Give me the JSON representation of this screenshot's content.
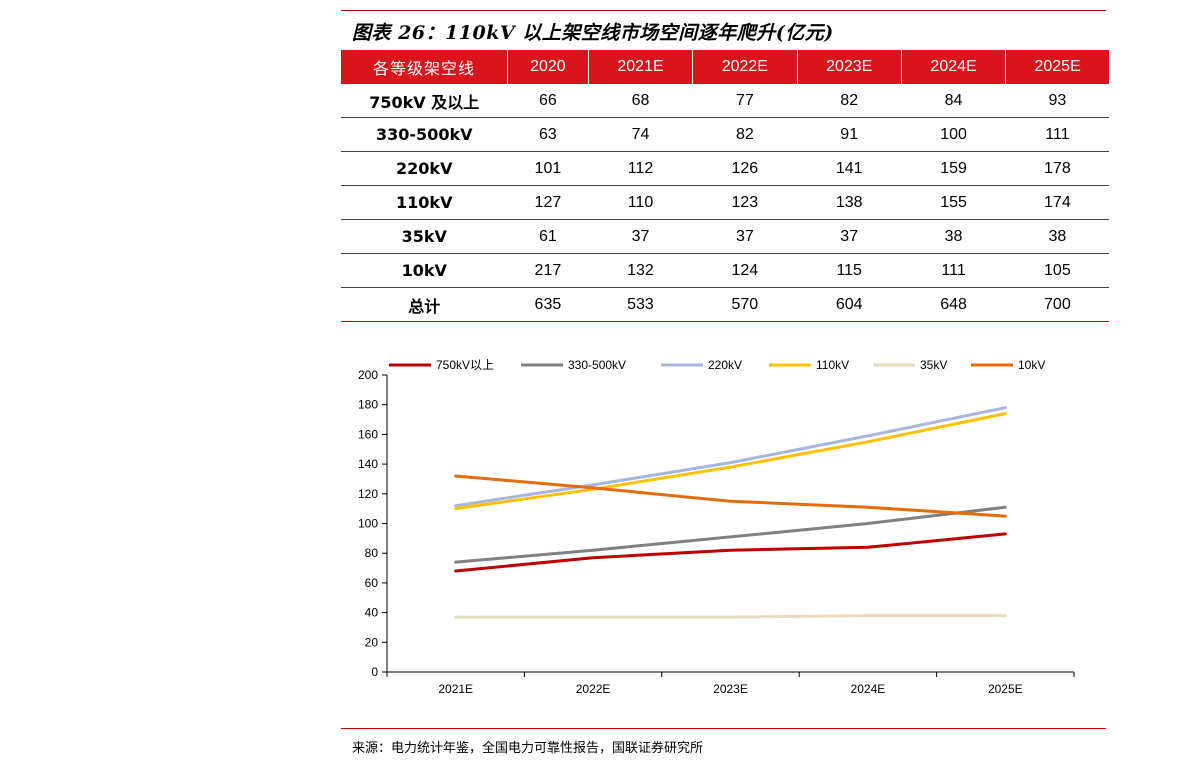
{
  "title": "图表 26：110kV 以上架空线市场空间逐年爬升(亿元)",
  "table": {
    "headers": [
      "各等级架空线",
      "2020",
      "2021E",
      "2022E",
      "2023E",
      "2024E",
      "2025E"
    ],
    "rows": [
      [
        "750kV 及以上",
        "66",
        "68",
        "77",
        "82",
        "84",
        "93"
      ],
      [
        "330-500kV",
        "63",
        "74",
        "82",
        "91",
        "100",
        "111"
      ],
      [
        "220kV",
        "101",
        "112",
        "126",
        "141",
        "159",
        "178"
      ],
      [
        "110kV",
        "127",
        "110",
        "123",
        "138",
        "155",
        "174"
      ],
      [
        "35kV",
        "61",
        "37",
        "37",
        "37",
        "38",
        "38"
      ],
      [
        "10kV",
        "217",
        "132",
        "124",
        "115",
        "111",
        "105"
      ],
      [
        "总计",
        "635",
        "533",
        "570",
        "604",
        "648",
        "700"
      ]
    ]
  },
  "chart_data": {
    "type": "line",
    "categories": [
      "2021E",
      "2022E",
      "2023E",
      "2024E",
      "2025E"
    ],
    "ylim": [
      0,
      200
    ],
    "yticks": [
      0,
      20,
      40,
      60,
      80,
      100,
      120,
      140,
      160,
      180,
      200
    ],
    "legend_position": "top",
    "grid": false,
    "series": [
      {
        "name": "750kV以上",
        "color": "#c00000",
        "values": [
          68,
          77,
          82,
          84,
          93
        ]
      },
      {
        "name": "330-500kV",
        "color": "#808080",
        "values": [
          74,
          82,
          91,
          100,
          111
        ]
      },
      {
        "name": "220kV",
        "color": "#a6b6de",
        "values": [
          112,
          126,
          141,
          159,
          178
        ]
      },
      {
        "name": "110kV",
        "color": "#ffc000",
        "values": [
          110,
          123,
          138,
          155,
          174
        ]
      },
      {
        "name": "35kV",
        "color": "#e8dcc0",
        "values": [
          37,
          37,
          37,
          38,
          38
        ]
      },
      {
        "name": "10kV",
        "color": "#e46c0a",
        "values": [
          132,
          124,
          115,
          111,
          105
        ]
      }
    ]
  },
  "source": "来源：电力统计年鉴，全国电力可靠性报告，国联证券研究所"
}
